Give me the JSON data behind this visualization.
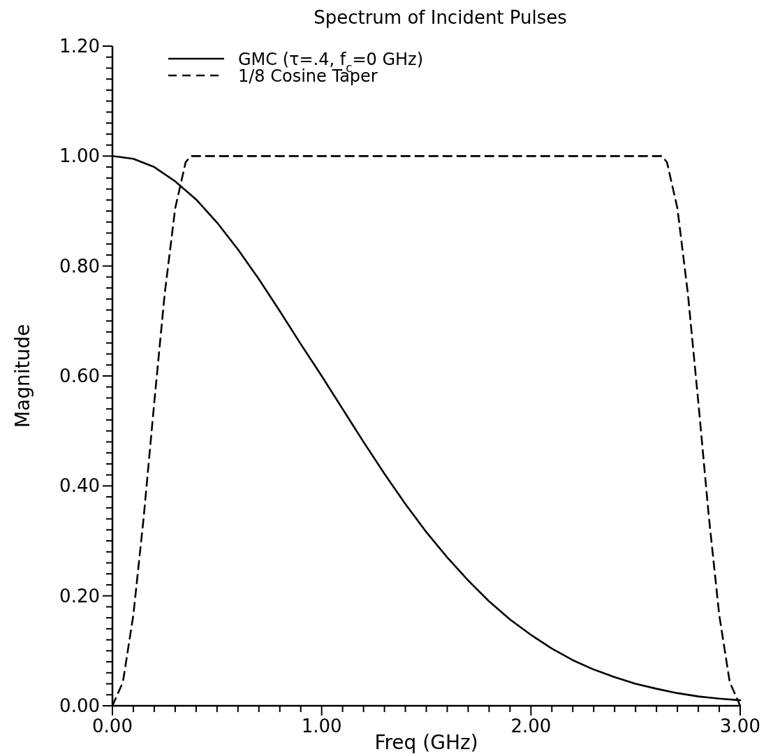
{
  "chart_data": {
    "type": "line",
    "title": "Spectrum of Incident Pulses",
    "xlabel": "Freq  (GHz)",
    "ylabel": "Magnitude",
    "xlim": [
      0,
      3
    ],
    "ylim": [
      0,
      1.2
    ],
    "xticks": [
      {
        "value": 0,
        "label": "0.00"
      },
      {
        "value": 0.1,
        "label": null
      },
      {
        "value": 0.2,
        "label": null
      },
      {
        "value": 0.3,
        "label": null
      },
      {
        "value": 0.4,
        "label": null
      },
      {
        "value": 0.5,
        "label": null
      },
      {
        "value": 0.6,
        "label": null
      },
      {
        "value": 0.7,
        "label": null
      },
      {
        "value": 0.8,
        "label": null
      },
      {
        "value": 0.9,
        "label": null
      },
      {
        "value": 1,
        "label": "1.00"
      },
      {
        "value": 1.1,
        "label": null
      },
      {
        "value": 1.2,
        "label": null
      },
      {
        "value": 1.3,
        "label": null
      },
      {
        "value": 1.4,
        "label": null
      },
      {
        "value": 1.5,
        "label": null
      },
      {
        "value": 1.6,
        "label": null
      },
      {
        "value": 1.7,
        "label": null
      },
      {
        "value": 1.8,
        "label": null
      },
      {
        "value": 1.9,
        "label": null
      },
      {
        "value": 2,
        "label": "2.00"
      },
      {
        "value": 2.1,
        "label": null
      },
      {
        "value": 2.2,
        "label": null
      },
      {
        "value": 2.3,
        "label": null
      },
      {
        "value": 2.4,
        "label": null
      },
      {
        "value": 2.5,
        "label": null
      },
      {
        "value": 2.6,
        "label": null
      },
      {
        "value": 2.7,
        "label": null
      },
      {
        "value": 2.8,
        "label": null
      },
      {
        "value": 2.9,
        "label": null
      },
      {
        "value": 3,
        "label": "3.00"
      }
    ],
    "yticks": [
      {
        "value": 0,
        "label": "0.00"
      },
      {
        "value": 0.02,
        "label": null
      },
      {
        "value": 0.04,
        "label": null
      },
      {
        "value": 0.06,
        "label": null
      },
      {
        "value": 0.08,
        "label": null
      },
      {
        "value": 0.1,
        "label": null
      },
      {
        "value": 0.12,
        "label": null
      },
      {
        "value": 0.14,
        "label": null
      },
      {
        "value": 0.16,
        "label": null
      },
      {
        "value": 0.18,
        "label": null
      },
      {
        "value": 0.2,
        "label": "0.20"
      },
      {
        "value": 0.22,
        "label": null
      },
      {
        "value": 0.24,
        "label": null
      },
      {
        "value": 0.26,
        "label": null
      },
      {
        "value": 0.28,
        "label": null
      },
      {
        "value": 0.3,
        "label": null
      },
      {
        "value": 0.32,
        "label": null
      },
      {
        "value": 0.34,
        "label": null
      },
      {
        "value": 0.36,
        "label": null
      },
      {
        "value": 0.38,
        "label": null
      },
      {
        "value": 0.4,
        "label": "0.40"
      },
      {
        "value": 0.42,
        "label": null
      },
      {
        "value": 0.44,
        "label": null
      },
      {
        "value": 0.46,
        "label": null
      },
      {
        "value": 0.48,
        "label": null
      },
      {
        "value": 0.5,
        "label": null
      },
      {
        "value": 0.52,
        "label": null
      },
      {
        "value": 0.54,
        "label": null
      },
      {
        "value": 0.56,
        "label": null
      },
      {
        "value": 0.58,
        "label": null
      },
      {
        "value": 0.6,
        "label": "0.60"
      },
      {
        "value": 0.62,
        "label": null
      },
      {
        "value": 0.64,
        "label": null
      },
      {
        "value": 0.66,
        "label": null
      },
      {
        "value": 0.68,
        "label": null
      },
      {
        "value": 0.7,
        "label": null
      },
      {
        "value": 0.72,
        "label": null
      },
      {
        "value": 0.74,
        "label": null
      },
      {
        "value": 0.76,
        "label": null
      },
      {
        "value": 0.78,
        "label": null
      },
      {
        "value": 0.8,
        "label": "0.80"
      },
      {
        "value": 0.82,
        "label": null
      },
      {
        "value": 0.84,
        "label": null
      },
      {
        "value": 0.86,
        "label": null
      },
      {
        "value": 0.88,
        "label": null
      },
      {
        "value": 0.9,
        "label": null
      },
      {
        "value": 0.92,
        "label": null
      },
      {
        "value": 0.94,
        "label": null
      },
      {
        "value": 0.96,
        "label": null
      },
      {
        "value": 0.98,
        "label": null
      },
      {
        "value": 1,
        "label": "1.00"
      },
      {
        "value": 1.02,
        "label": null
      },
      {
        "value": 1.04,
        "label": null
      },
      {
        "value": 1.06,
        "label": null
      },
      {
        "value": 1.08,
        "label": null
      },
      {
        "value": 1.1,
        "label": null
      },
      {
        "value": 1.12,
        "label": null
      },
      {
        "value": 1.14,
        "label": null
      },
      {
        "value": 1.16,
        "label": null
      },
      {
        "value": 1.18,
        "label": null
      },
      {
        "value": 1.2,
        "label": "1.20"
      }
    ],
    "grid": false,
    "legend": "top left",
    "series": [
      {
        "name": "GMC (τ=.4, f$_{c}$=0 GHz)",
        "color": "#000000",
        "line_style": "solid",
        "x": [
          0,
          0.1,
          0.2,
          0.3,
          0.4,
          0.5,
          0.6,
          0.7,
          0.8,
          0.9,
          1,
          1.1,
          1.2,
          1.3,
          1.4,
          1.5,
          1.6,
          1.7,
          1.8,
          1.9,
          2,
          2.1,
          2.2,
          2.3,
          2.4,
          2.5,
          2.6,
          2.7,
          2.8,
          2.9,
          3
        ],
        "values": [
          1,
          0.995,
          0.98,
          0.954,
          0.921,
          0.879,
          0.83,
          0.776,
          0.718,
          0.658,
          0.6,
          0.54,
          0.48,
          0.422,
          0.367,
          0.316,
          0.27,
          0.228,
          0.19,
          0.157,
          0.129,
          0.104,
          0.083,
          0.066,
          0.052,
          0.04,
          0.031,
          0.023,
          0.017,
          0.013,
          0.01
        ]
      },
      {
        "name": "1/8 Cosine Taper",
        "color": "#000000",
        "line_style": "dashed",
        "x": [
          0,
          0.05,
          0.1,
          0.15,
          0.2,
          0.25,
          0.3,
          0.35,
          0.375,
          2.625,
          2.65,
          2.7,
          2.75,
          2.8,
          2.85,
          2.9,
          2.95,
          3
        ],
        "values": [
          0,
          0.043,
          0.165,
          0.345,
          0.552,
          0.75,
          0.905,
          0.989,
          1,
          1,
          0.989,
          0.905,
          0.75,
          0.552,
          0.345,
          0.165,
          0.043,
          0
        ]
      }
    ]
  }
}
